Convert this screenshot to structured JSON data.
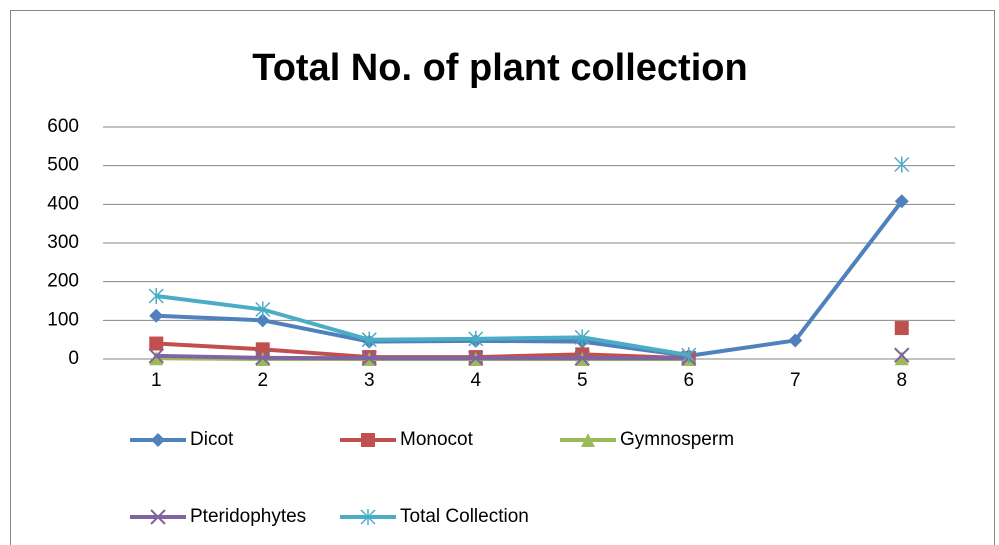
{
  "chart_data": {
    "type": "line",
    "title": "Total No. of plant collection",
    "categories": [
      "1",
      "2",
      "3",
      "4",
      "5",
      "6",
      "7",
      "8"
    ],
    "series": [
      {
        "name": "Dicot",
        "color": "#4f81bd",
        "marker": "diamond",
        "values": [
          112,
          100,
          45,
          47,
          45,
          8,
          48,
          408
        ]
      },
      {
        "name": "Monocot",
        "color": "#c0504d",
        "marker": "square",
        "values": [
          40,
          25,
          5,
          5,
          12,
          2,
          null,
          80
        ]
      },
      {
        "name": "Gymnosperm",
        "color": "#9bbb59",
        "marker": "triangle",
        "values": [
          2,
          0,
          0,
          0,
          0,
          0,
          null,
          2
        ]
      },
      {
        "name": "Pteridophytes",
        "color": "#8064a2",
        "marker": "x",
        "values": [
          8,
          3,
          2,
          2,
          2,
          2,
          null,
          10
        ]
      },
      {
        "name": "Total Collection",
        "color": "#4bacc6",
        "marker": "star",
        "values": [
          163,
          128,
          50,
          52,
          56,
          10,
          null,
          503
        ]
      }
    ],
    "ylim": [
      0,
      600
    ],
    "yticks": [
      0,
      100,
      200,
      300,
      400,
      500,
      600
    ],
    "grid": true,
    "legend": "bottom"
  }
}
